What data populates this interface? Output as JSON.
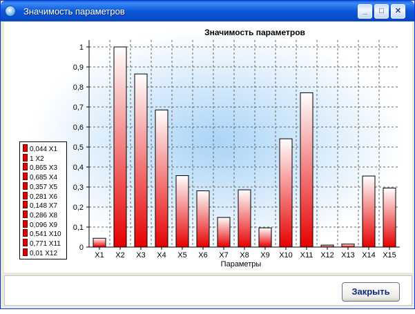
{
  "window": {
    "title": "Значимость параметров",
    "minimize_label": "_",
    "maximize_label": "□",
    "close_label": "✕"
  },
  "buttons": {
    "close_label": "Закрыть"
  },
  "chart_data": {
    "type": "bar",
    "title": "Значимость параметров",
    "xlabel": "Параметры",
    "ylabel": "",
    "ylim": [
      0,
      1
    ],
    "yticks": [
      "0",
      "0,1",
      "0,2",
      "0,3",
      "0,4",
      "0,5",
      "0,6",
      "0,7",
      "0,8",
      "0,9",
      "1"
    ],
    "grid": true,
    "categories": [
      "X1",
      "X2",
      "X3",
      "X4",
      "X5",
      "X6",
      "X7",
      "X8",
      "X9",
      "X10",
      "X11",
      "X12",
      "X13",
      "X14",
      "X15"
    ],
    "values": [
      0.044,
      1.0,
      0.865,
      0.685,
      0.357,
      0.281,
      0.148,
      0.286,
      0.096,
      0.541,
      0.771,
      0.01,
      0.015,
      0.355,
      0.295
    ],
    "bar_color": "#e60000",
    "legend_position": "left",
    "legend": [
      "0,044 X1",
      "1 X2",
      "0,865 X3",
      "0,685 X4",
      "0,357 X5",
      "0,281 X6",
      "0,148 X7",
      "0,286 X8",
      "0,096 X9",
      "0,541 X10",
      "0,771 X11",
      "0,01 X12"
    ]
  }
}
